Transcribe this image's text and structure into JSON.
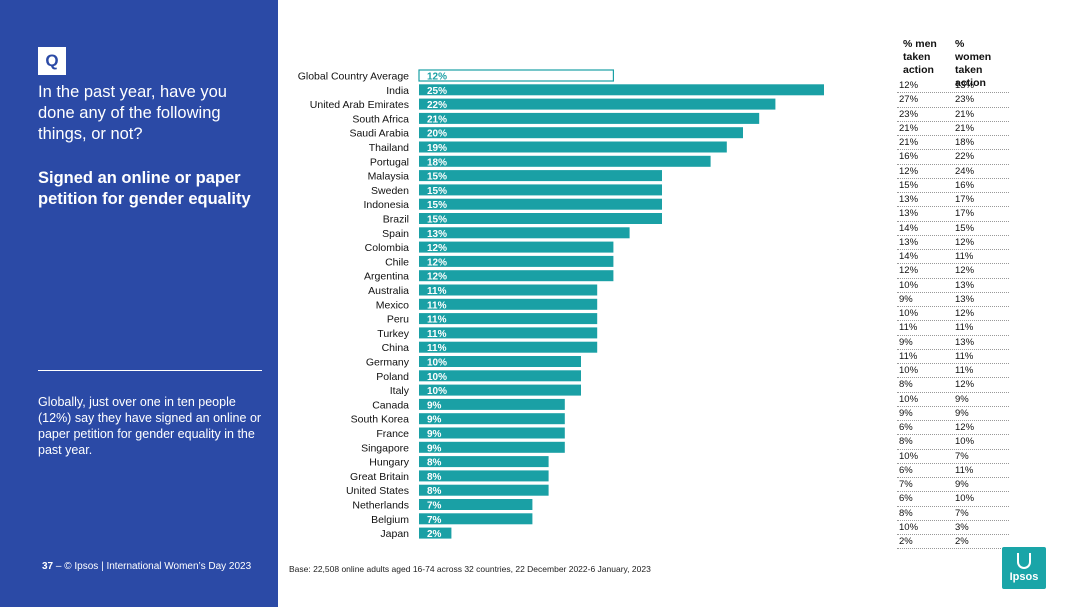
{
  "sidebar": {
    "badge": "Q",
    "question": "In the past year, have you done any of the following things, or not?",
    "subtitle": "Signed an online or paper petition for gender equality",
    "summary": "Globally, just over one in ten people (12%)  say they have signed an online or paper petition for gender equality in the past year.",
    "footer_page": "37",
    "footer_text": " –  © Ipsos | International Women’s Day 2023"
  },
  "colors": {
    "sidebar": "#2b4aa6",
    "bar": "#1aa0a5",
    "bar_outline": "#1aa0a5"
  },
  "chart_data": {
    "type": "bar",
    "orientation": "horizontal",
    "categories": [
      "Global Country Average",
      "India",
      "United Arab Emirates",
      "South Africa",
      "Saudi Arabia",
      "Thailand",
      "Portugal",
      "Malaysia",
      "Sweden",
      "Indonesia",
      "Brazil",
      "Spain",
      "Colombia",
      "Chile",
      "Argentina",
      "Australia",
      "Mexico",
      "Peru",
      "Turkey",
      "China",
      "Germany",
      "Poland",
      "Italy",
      "Canada",
      "South Korea",
      "France",
      "Singapore",
      "Hungary",
      "Great Britain",
      "United States",
      "Netherlands",
      "Belgium",
      "Japan"
    ],
    "values": [
      12,
      25,
      22,
      21,
      20,
      19,
      18,
      15,
      15,
      15,
      15,
      13,
      12,
      12,
      12,
      11,
      11,
      11,
      11,
      11,
      10,
      10,
      10,
      9,
      9,
      9,
      9,
      8,
      8,
      8,
      7,
      7,
      2
    ],
    "value_labels": [
      "12%",
      "25%",
      "22%",
      "21%",
      "20%",
      "19%",
      "18%",
      "15%",
      "15%",
      "15%",
      "15%",
      "13%",
      "12%",
      "12%",
      "12%",
      "11%",
      "11%",
      "11%",
      "11%",
      "11%",
      "10%",
      "10%",
      "10%",
      "9%",
      "9%",
      "9%",
      "9%",
      "8%",
      "8%",
      "8%",
      "7%",
      "7%",
      "2%"
    ],
    "highlight_first": "outline"
  },
  "table": {
    "header_men": "% men taken action",
    "header_women": "% women taken action",
    "rows": [
      [
        "12%",
        "13%"
      ],
      [
        "27%",
        "23%"
      ],
      [
        "23%",
        "21%"
      ],
      [
        "21%",
        "21%"
      ],
      [
        "21%",
        "18%"
      ],
      [
        "16%",
        "22%"
      ],
      [
        "12%",
        "24%"
      ],
      [
        "15%",
        "16%"
      ],
      [
        "13%",
        "17%"
      ],
      [
        "13%",
        "17%"
      ],
      [
        "14%",
        "15%"
      ],
      [
        "13%",
        "12%"
      ],
      [
        "14%",
        "11%"
      ],
      [
        "12%",
        "12%"
      ],
      [
        "10%",
        "13%"
      ],
      [
        "9%",
        "13%"
      ],
      [
        "10%",
        "12%"
      ],
      [
        "11%",
        "11%"
      ],
      [
        "9%",
        "13%"
      ],
      [
        "11%",
        "11%"
      ],
      [
        "10%",
        "11%"
      ],
      [
        "8%",
        "12%"
      ],
      [
        "10%",
        "9%"
      ],
      [
        "9%",
        "9%"
      ],
      [
        "6%",
        "12%"
      ],
      [
        "8%",
        "10%"
      ],
      [
        "10%",
        "7%"
      ],
      [
        "6%",
        "11%"
      ],
      [
        "7%",
        "9%"
      ],
      [
        "6%",
        "10%"
      ],
      [
        "8%",
        "7%"
      ],
      [
        "10%",
        "3%"
      ],
      [
        "2%",
        "2%"
      ]
    ]
  },
  "base_note": "Base: 22,508 online adults aged 16-74 across 32 countries, 22 December 2022-6 January, 2023",
  "logo_text": "Ipsos"
}
